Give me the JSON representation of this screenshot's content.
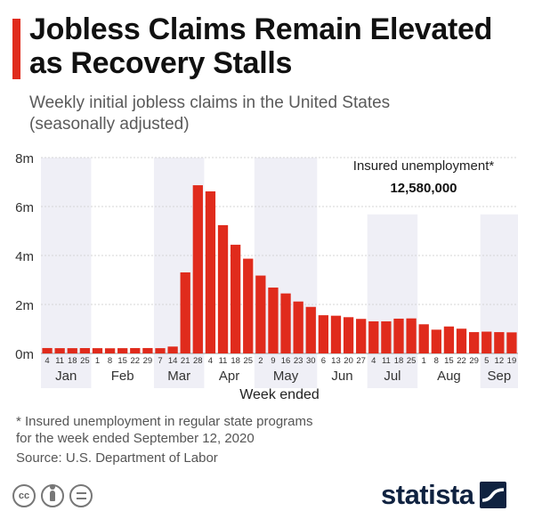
{
  "header": {
    "title": "Jobless Claims Remain Elevated\nas Recovery Stalls",
    "subtitle": "Weekly initial jobless claims in the United States\n(seasonally adjusted)"
  },
  "colors": {
    "accent": "#e02b1c",
    "bar": "#e02b1c",
    "month_band": "#efeff6",
    "brand": "#0f2240",
    "grid": "#d6d6d6"
  },
  "chart_data": {
    "type": "bar",
    "title": "Weekly initial jobless claims in the United States (seasonally adjusted)",
    "xlabel": "Week ended",
    "ylabel": "",
    "ylim": [
      0,
      8000000
    ],
    "yticks": [
      0,
      2000000,
      4000000,
      6000000,
      8000000
    ],
    "ytick_labels": [
      "0m",
      "2m",
      "4m",
      "6m",
      "8m"
    ],
    "grid": true,
    "categories": [
      "4",
      "11",
      "18",
      "25",
      "1",
      "8",
      "15",
      "22",
      "29",
      "7",
      "14",
      "21",
      "28",
      "4",
      "11",
      "18",
      "25",
      "2",
      "9",
      "16",
      "23",
      "30",
      "6",
      "13",
      "20",
      "27",
      "4",
      "11",
      "18",
      "25",
      "1",
      "8",
      "15",
      "22",
      "29",
      "5",
      "12",
      "19"
    ],
    "values": [
      220000,
      215000,
      215000,
      218000,
      215000,
      210000,
      215000,
      218000,
      220000,
      215000,
      280000,
      3310000,
      6870000,
      6620000,
      5240000,
      4440000,
      3870000,
      3180000,
      2690000,
      2450000,
      2120000,
      1900000,
      1560000,
      1540000,
      1480000,
      1410000,
      1310000,
      1310000,
      1420000,
      1430000,
      1190000,
      970000,
      1100000,
      1010000,
      870000,
      890000,
      870000,
      860000
    ],
    "months": [
      {
        "label": "Jan",
        "start": 0,
        "count": 4
      },
      {
        "label": "Feb",
        "start": 4,
        "count": 5
      },
      {
        "label": "Mar",
        "start": 9,
        "count": 4
      },
      {
        "label": "Apr",
        "start": 13,
        "count": 4
      },
      {
        "label": "May",
        "start": 17,
        "count": 5
      },
      {
        "label": "Jun",
        "start": 22,
        "count": 4
      },
      {
        "label": "Jul",
        "start": 26,
        "count": 4
      },
      {
        "label": "Aug",
        "start": 30,
        "count": 5
      },
      {
        "label": "Sep",
        "start": 35,
        "count": 3
      }
    ],
    "annotation": {
      "label": "Insured unemployment*",
      "value": "12,580,000"
    }
  },
  "footer": {
    "footnote": "* Insured unemployment in regular state programs\n   for the week ended September 12, 2020",
    "source": "Source: U.S. Department of Labor",
    "license_icons": [
      "creative-commons-icon",
      "attribution-icon",
      "no-derivatives-icon"
    ],
    "brand": "statista",
    "cc_label": "cc"
  }
}
